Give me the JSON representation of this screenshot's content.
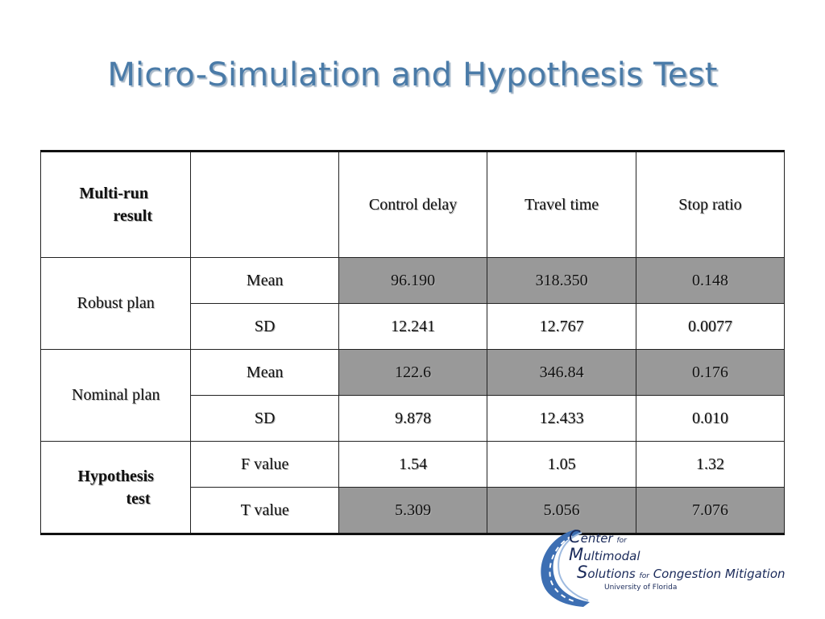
{
  "title": "Micro-Simulation and Hypothesis Test",
  "table": {
    "header": {
      "corner_line1": "Multi-run",
      "corner_line2": "result",
      "cols": [
        "Control delay",
        "Travel time",
        "Stop ratio"
      ]
    },
    "groups": [
      {
        "label": "Robust plan",
        "rows": [
          {
            "stat": "Mean",
            "values": [
              "96.190",
              "318.350",
              "0.148"
            ],
            "shaded": true
          },
          {
            "stat": "SD",
            "values": [
              "12.241",
              "12.767",
              "0.0077"
            ],
            "shaded": false
          }
        ]
      },
      {
        "label": "Nominal plan",
        "rows": [
          {
            "stat": "Mean",
            "values": [
              "122.6",
              "346.84",
              "0.176"
            ],
            "shaded": true
          },
          {
            "stat": "SD",
            "values": [
              "9.878",
              "12.433",
              "0.010"
            ],
            "shaded": false
          }
        ]
      },
      {
        "label_line1": "Hypothesis",
        "label_line2": "test",
        "rows": [
          {
            "stat": "F value",
            "values": [
              "1.54",
              "1.05",
              "1.32"
            ],
            "shaded": false
          },
          {
            "stat": "T value",
            "values": [
              "5.309",
              "5.056",
              "7.076"
            ],
            "shaded": true
          }
        ]
      }
    ],
    "shade_color": "#999999"
  },
  "logo": {
    "line1_big": "C",
    "line1_rest": "enter",
    "line1_small": "for",
    "line2_big": "M",
    "line2_rest": "ultimodal",
    "line3_big": "S",
    "line3_rest": "olutions",
    "line3_small": "for",
    "line3_tail": "Congestion Mitigation",
    "university": "University of Florida",
    "colors": {
      "road": "#3d6fb3",
      "stripe": "#ffffff",
      "text": "#1a2a5a"
    }
  }
}
